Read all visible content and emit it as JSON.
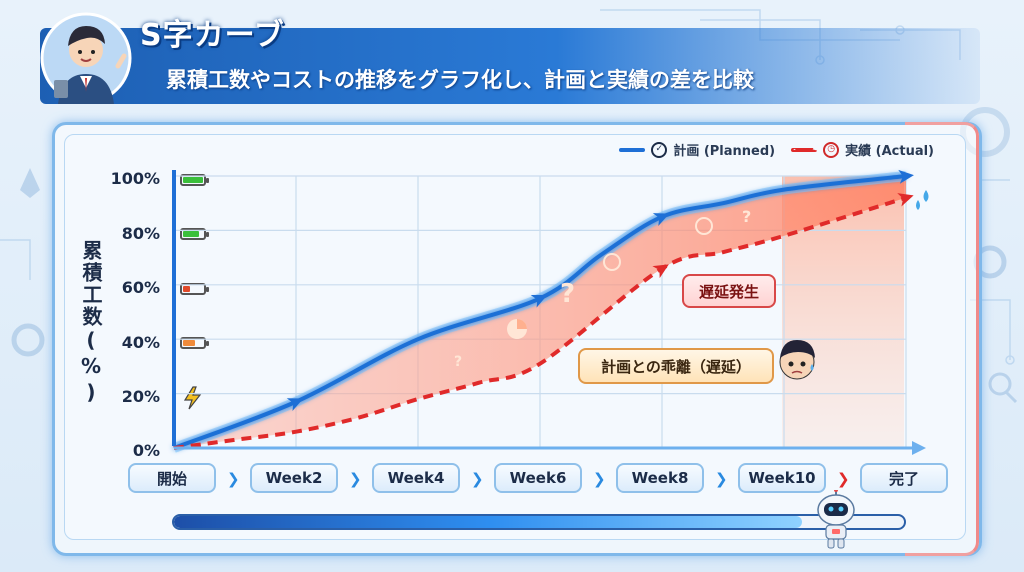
{
  "header": {
    "title": "S字カーブ",
    "subtitle": "累積工数やコストの推移をグラフ化し、計画と実績の差を比較"
  },
  "legend": {
    "planned": "計画 (Planned)",
    "actual": "実績 (Actual)",
    "planned_color": "#1e6fd6",
    "actual_color": "#e02a2a"
  },
  "chart_data": {
    "type": "line",
    "ylabel": "累積工数(%)",
    "y_ticks": [
      "0%",
      "20%",
      "40%",
      "60%",
      "80%",
      "100%"
    ],
    "ylim": [
      0,
      100
    ],
    "categories": [
      "開始",
      "Week2",
      "Week4",
      "Week6",
      "Week8",
      "Week10",
      "完了"
    ],
    "grid": true,
    "series": [
      {
        "name": "計画 (Planned)",
        "x": [
          0,
          1,
          2,
          3,
          3.5,
          4,
          4.5,
          5,
          6
        ],
        "values": [
          0,
          17,
          40,
          55,
          71,
          85,
          90,
          95,
          100
        ]
      },
      {
        "name": "実績 (Actual)",
        "x": [
          0,
          0.5,
          1,
          1.5,
          2,
          2.5,
          3,
          4,
          4.5,
          5,
          6
        ],
        "values": [
          0,
          3,
          6,
          11,
          18,
          24,
          31,
          66,
          72,
          78,
          92
        ]
      }
    ],
    "annotations": [
      "遅延発生",
      "計画との乖離（遅延）"
    ]
  },
  "progress": {
    "value": 0.86
  },
  "icons": {
    "avatar": "businessman-avatar-icon",
    "robot": "robot-mascot-icon",
    "kid": "worried-boy-icon"
  }
}
